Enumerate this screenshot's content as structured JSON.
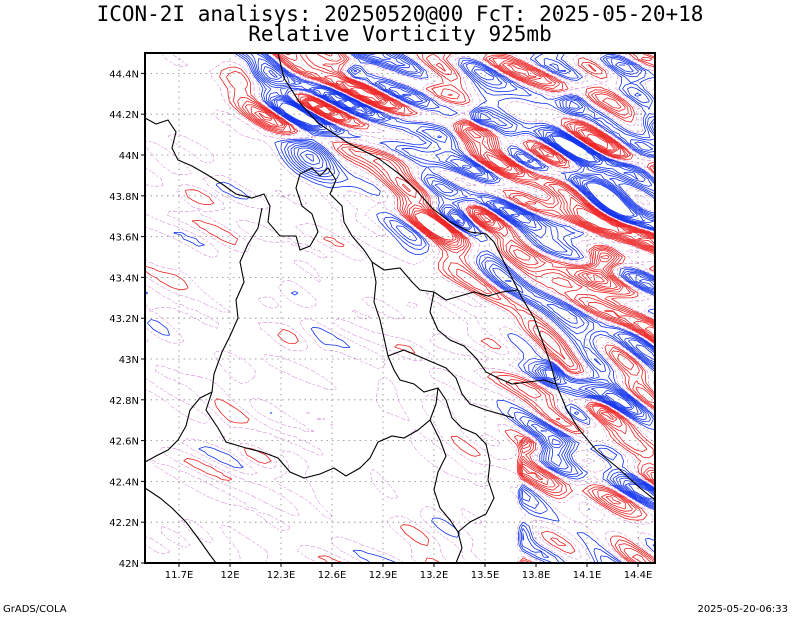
{
  "title": {
    "line1": "ICON-2I analisys: 20250520@00 FcT: 2025-05-20+18",
    "line2": "Relative Vorticity 925mb"
  },
  "map": {
    "lon_range": [
      11.5,
      14.5
    ],
    "lat_range": [
      42.0,
      44.5
    ],
    "lat_ticks": [
      "42N",
      "42.2N",
      "42.4N",
      "42.6N",
      "42.8N",
      "43N",
      "43.2N",
      "43.4N",
      "43.6N",
      "43.8N",
      "44N",
      "44.2N",
      "44.4N"
    ],
    "lon_ticks": [
      "11.7E",
      "12E",
      "12.3E",
      "12.6E",
      "12.9E",
      "13.2E",
      "13.5E",
      "13.8E",
      "14.1E",
      "14.4E"
    ],
    "colors": {
      "positive_vorticity": "#ee2222",
      "negative_vorticity": "#1133ee",
      "weak_contour": "#cc66cc",
      "borders": "#000000",
      "grid": "#888888"
    }
  },
  "footer": {
    "left": "GrADS/COLA",
    "right": "2025-05-20-06:33"
  }
}
